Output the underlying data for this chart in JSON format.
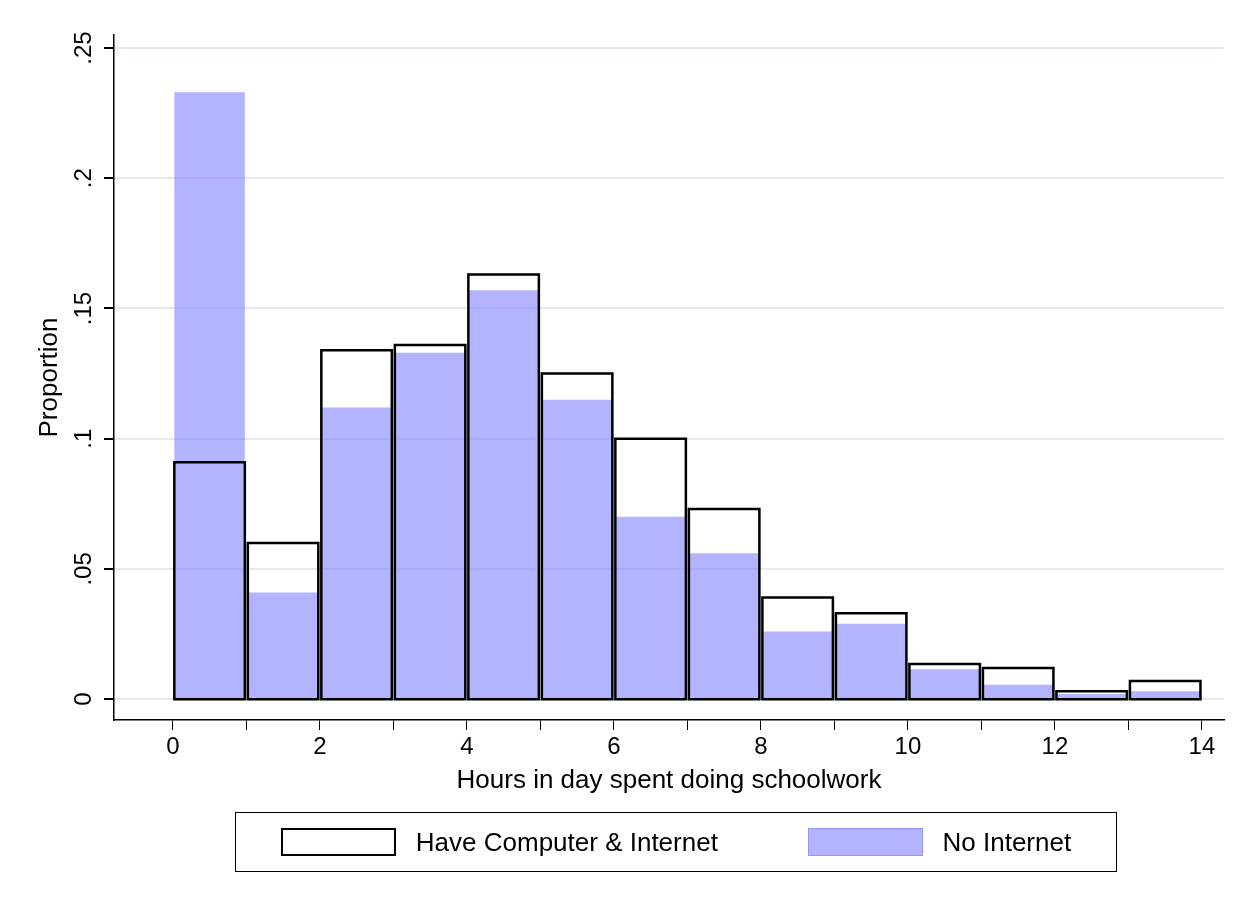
{
  "chart_data": {
    "type": "histogram",
    "xlabel": "Hours in day spent doing schoolwork",
    "ylabel": "Proportion",
    "bins": [
      0,
      1,
      2,
      3,
      4,
      5,
      6,
      7,
      8,
      9,
      10,
      11,
      12,
      13,
      14
    ],
    "series": [
      {
        "name": "Have Computer & Internet",
        "color": "#000000",
        "values": [
          0.091,
          0.06,
          0.134,
          0.136,
          0.163,
          0.125,
          0.1,
          0.073,
          0.039,
          0.033,
          0.0135,
          0.012,
          0.003,
          0.007
        ]
      },
      {
        "name": "No Internet",
        "color": "#8080ff",
        "values": [
          0.233,
          0.041,
          0.112,
          0.133,
          0.157,
          0.115,
          0.07,
          0.056,
          0.026,
          0.029,
          0.0115,
          0.0055,
          0.002,
          0.003
        ]
      }
    ],
    "xlim": [
      -0.8,
      14.3
    ],
    "xticks": [
      0,
      {
        "value": 1,
        "label": null
      },
      2,
      {
        "value": 3,
        "label": null
      },
      4,
      {
        "value": 5,
        "label": null
      },
      6,
      {
        "value": 7,
        "label": null
      },
      8,
      {
        "value": 9,
        "label": null
      },
      10,
      {
        "value": 11,
        "label": null
      },
      12,
      {
        "value": 13,
        "label": null
      },
      14
    ],
    "ylim": [
      -0.008,
      0.255
    ],
    "yticks": [
      {
        "value": 0,
        "label": "0"
      },
      {
        "value": 0.05,
        "label": ".05"
      },
      {
        "value": 0.1,
        "label": ".1"
      },
      {
        "value": 0.15,
        "label": ".15"
      },
      {
        "value": 0.2,
        "label": ".2"
      },
      {
        "value": 0.25,
        "label": ".25"
      }
    ],
    "grid": "y",
    "legend": "bottom"
  }
}
